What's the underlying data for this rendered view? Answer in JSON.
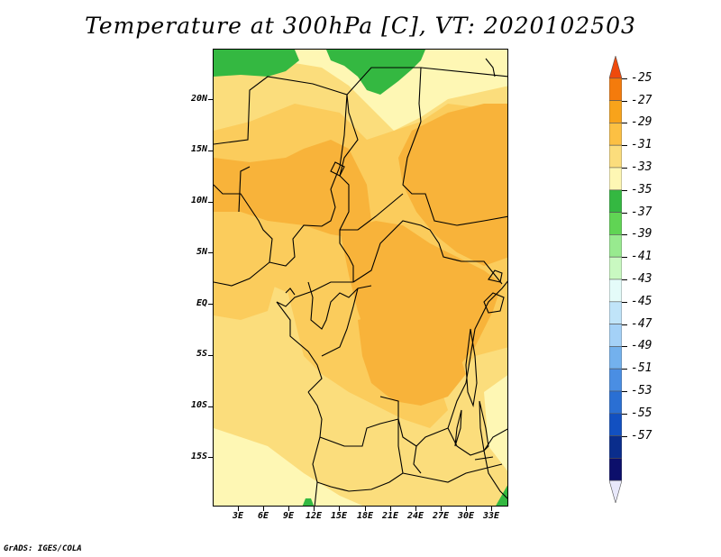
{
  "title": "Temperature at 300hPa [C], VT: 2020102503",
  "credit": "GrADS: IGES/COLA",
  "lat_labels": [
    "20N",
    "15N",
    "10N",
    "5N",
    "EQ",
    "5S",
    "10S",
    "15S"
  ],
  "lon_labels": [
    "3E",
    "6E",
    "9E",
    "12E",
    "15E",
    "18E",
    "21E",
    "24E",
    "27E",
    "30E",
    "33E"
  ],
  "colorbar": {
    "levels": [
      "-25",
      "-27",
      "-29",
      "-31",
      "-33",
      "-35",
      "-37",
      "-39",
      "-41",
      "-43",
      "-45",
      "-47",
      "-49",
      "-51",
      "-53",
      "-55",
      "-57"
    ],
    "colors": [
      "#ef4a0c",
      "#f47b0c",
      "#f8a31b",
      "#fcc043",
      "#fbdd7c",
      "#fef7b4",
      "#34b841",
      "#60d454",
      "#98ea8f",
      "#c9f9c1",
      "#e4fbf9",
      "#c0e4f9",
      "#a4d1f7",
      "#73b1ed",
      "#4a8ee3",
      "#2a6fd3",
      "#1250c1",
      "#0a2d8c",
      "#0c0f6b",
      "#e8e8fa"
    ]
  },
  "field_colors": {
    "warmest": "#f8b33a",
    "warm": "#fbcc5c",
    "mid": "#fbdd7c",
    "cool": "#fef7b4",
    "cold": "#34b841"
  }
}
